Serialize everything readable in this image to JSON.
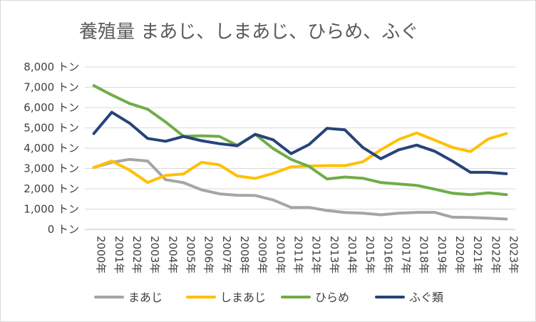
{
  "chart_data": {
    "type": "line",
    "title": "養殖量 まあじ、しまあじ、ひらめ、ふぐ",
    "categories": [
      "2000年",
      "2001年",
      "2002年",
      "2003年",
      "2004年",
      "2005年",
      "2006年",
      "2007年",
      "2008年",
      "2009年",
      "2010年",
      "2011年",
      "2012年",
      "2013年",
      "2014年",
      "2015年",
      "2016年",
      "2017年",
      "2018年",
      "2019年",
      "2020年",
      "2021年",
      "2022年",
      "2023年"
    ],
    "y_ticks": [
      "0 トン",
      "1,000 トン",
      "2,000 トン",
      "3,000 トン",
      "4,000 トン",
      "5,000 トン",
      "6,000 トン",
      "7,000 トン",
      "8,000 トン"
    ],
    "ylim": [
      0,
      8000
    ],
    "grid": true,
    "legend_position": "bottom",
    "series": [
      {
        "name": "まあじ",
        "color": "#a5a5a5",
        "values": [
          3050,
          3300,
          3450,
          3370,
          2450,
          2300,
          1950,
          1750,
          1680,
          1670,
          1450,
          1080,
          1080,
          930,
          830,
          800,
          720,
          800,
          840,
          840,
          600,
          590,
          550,
          510
        ]
      },
      {
        "name": "しまあじ",
        "color": "#ffc000",
        "values": [
          3050,
          3370,
          2920,
          2310,
          2660,
          2730,
          3300,
          3180,
          2630,
          2510,
          2760,
          3080,
          3120,
          3140,
          3140,
          3330,
          3920,
          4430,
          4750,
          4400,
          4040,
          3830,
          4460,
          4720
        ]
      },
      {
        "name": "ひらめ",
        "color": "#70ad47",
        "values": [
          7080,
          6620,
          6200,
          5920,
          5290,
          4590,
          4610,
          4580,
          4140,
          4680,
          3980,
          3450,
          3100,
          2480,
          2580,
          2520,
          2310,
          2240,
          2170,
          1980,
          1780,
          1710,
          1800,
          1710
        ]
      },
      {
        "name": "ふぐ類",
        "color": "#264478",
        "values": [
          4720,
          5770,
          5230,
          4480,
          4340,
          4580,
          4370,
          4220,
          4120,
          4680,
          4410,
          3730,
          4180,
          4980,
          4900,
          4030,
          3480,
          3920,
          4150,
          3850,
          3360,
          2810,
          2810,
          2740
        ]
      }
    ]
  }
}
